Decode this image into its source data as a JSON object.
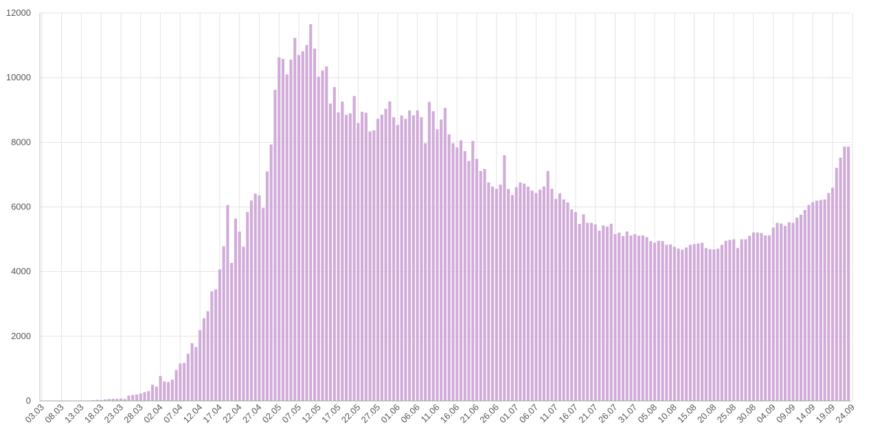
{
  "chart_data": {
    "type": "bar",
    "title": "",
    "xlabel": "",
    "ylabel": "",
    "start_date": "2020-03-03",
    "x_labels": [
      "03.03",
      "08.03",
      "13.03",
      "18.03",
      "23.03",
      "28.03",
      "02.04",
      "07.04",
      "12.04",
      "17.04",
      "22.04",
      "27.04",
      "02.05",
      "07.05",
      "12.05",
      "17.05",
      "22.05",
      "27.05",
      "01.06",
      "06.06",
      "11.06",
      "16.06",
      "21.06",
      "26.06",
      "01.07",
      "06.07",
      "11.07",
      "16.07",
      "21.07",
      "26.07",
      "31.07",
      "05.08",
      "10.08",
      "15.08",
      "20.08",
      "25.08",
      "30.08",
      "04.09",
      "09.09",
      "14.09",
      "19.09",
      "24.09"
    ],
    "ylim": [
      0,
      12000
    ],
    "y_ticks": [
      0,
      2000,
      4000,
      6000,
      8000,
      10000,
      12000
    ],
    "grid": true,
    "bar_color": "#d1acd9",
    "values": [
      3,
      0,
      0,
      0,
      0,
      0,
      0,
      3,
      4,
      4,
      6,
      10,
      10,
      20,
      34,
      26,
      46,
      59,
      63,
      63,
      71,
      57,
      163,
      182,
      196,
      228,
      270,
      302,
      500,
      440,
      771,
      601,
      582,
      658,
      954,
      1154,
      1175,
      1459,
      1786,
      1667,
      2186,
      2558,
      2774,
      3388,
      3448,
      4070,
      4785,
      6060,
      4268,
      5642,
      5236,
      4774,
      5849,
      6198,
      6411,
      6361,
      5966,
      7099,
      7933,
      9623,
      10633,
      10581,
      10102,
      10559,
      11231,
      10699,
      10817,
      11012,
      11656,
      10899,
      10028,
      10222,
      10348,
      9200,
      9709,
      8926,
      9263,
      8849,
      8894,
      9434,
      8599,
      8946,
      8915,
      8338,
      8371,
      8726,
      8855,
      9035,
      9268,
      8779,
      8536,
      8831,
      8726,
      8987,
      8835,
      8985,
      8779,
      7972,
      9252,
      8961,
      8404,
      8706,
      9066,
      8248,
      7972,
      7843,
      8062,
      7728,
      7425,
      8045,
      7489,
      7113,
      7176,
      6760,
      6632,
      6562,
      6693,
      7600,
      6556,
      6368,
      6611,
      6760,
      6719,
      6632,
      6509,
      6427,
      6537,
      6635,
      7112,
      6562,
      6248,
      6422,
      6234,
      6139,
      5923,
      5842,
      5475,
      5771,
      5509,
      5509,
      5462,
      5267,
      5427,
      5394,
      5482,
      5159,
      5204,
      5102,
      5241,
      5118,
      5159,
      5110,
      5121,
      5065,
      4945,
      4892,
      4952,
      4945,
      4829,
      4839,
      4768,
      4711,
      4676,
      4748,
      4828,
      4852,
      4870,
      4890,
      4729,
      4696,
      4685,
      4711,
      4829,
      4952,
      4980,
      5000,
      4729,
      5000,
      5000,
      5110,
      5212,
      5212,
      5196,
      5118,
      5121,
      5363,
      5509,
      5488,
      5413,
      5529,
      5509,
      5670,
      5762,
      5905,
      6065,
      6148,
      6196,
      6215,
      6234,
      6431,
      6595,
      7212,
      7523,
      7867,
      7867
    ]
  }
}
